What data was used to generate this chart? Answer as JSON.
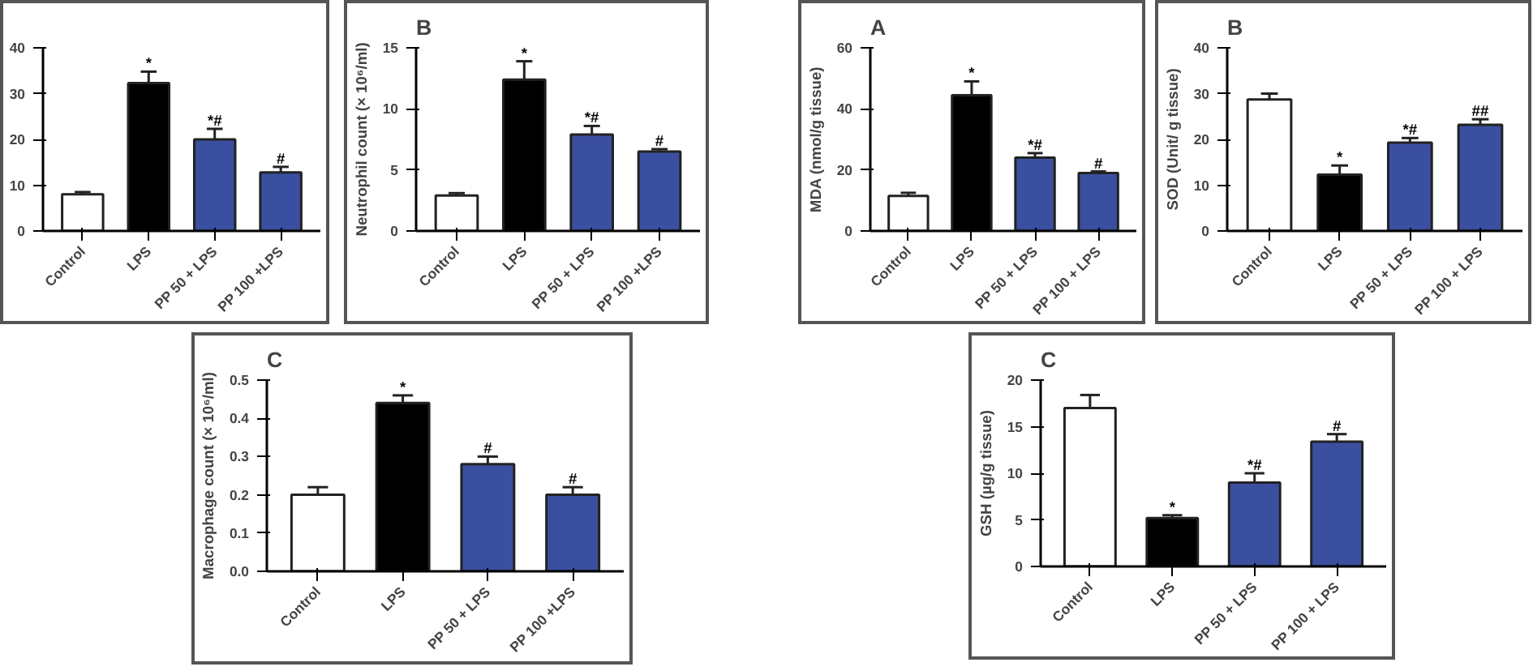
{
  "chart_data": [
    {
      "type": "bar",
      "categories": [
        "Control",
        "LPS",
        "PP 50 + LPS",
        "PP 100 +LPS"
      ],
      "values": [
        8,
        32.3,
        20,
        12.8
      ],
      "colors": [
        "#ffffff",
        "#000000",
        "#3b4fa0",
        "#3b4fa0"
      ],
      "errors": [
        [
          8,
          8.5
        ],
        [
          32.3,
          34.8
        ],
        [
          20,
          22.3
        ],
        [
          12.8,
          14
        ]
      ],
      "ylim": [
        0,
        40
      ],
      "yticks": [
        0,
        10,
        20,
        30,
        40
      ],
      "annotations": [
        {
          "text": "*",
          "x": "LPS",
          "y": 34.8
        },
        {
          "text": "*#",
          "x": "PP 50 + LPS",
          "y": 22.3
        },
        {
          "text": "#",
          "x": "PP 100 +LPS",
          "y": 14
        }
      ]
    },
    {
      "type": "bar",
      "title": "B",
      "ylabel": "Neutrophil count (× 10⁶/ml)",
      "categories": [
        "Control",
        "LPS",
        "PP 50 + LPS",
        "PP 100 +LPS"
      ],
      "values": [
        2.9,
        12.4,
        7.9,
        6.5
      ],
      "colors": [
        "#ffffff",
        "#000000",
        "#3b4fa0",
        "#3b4fa0"
      ],
      "errors": [
        [
          2.9,
          3.1
        ],
        [
          12.4,
          13.9
        ],
        [
          7.9,
          8.6
        ],
        [
          6.5,
          6.7
        ]
      ],
      "ylim": [
        0,
        15
      ],
      "yticks": [
        0,
        5,
        10,
        15
      ],
      "annotations": [
        {
          "text": "*",
          "x": "LPS",
          "y": 13.9
        },
        {
          "text": "*#",
          "x": "PP 50 + LPS",
          "y": 8.6
        },
        {
          "text": "#",
          "x": "PP 100 +LPS",
          "y": 6.7
        }
      ]
    },
    {
      "type": "bar",
      "title": "A",
      "ylabel": "MDA (nmol/g tissue)",
      "categories": [
        "Control",
        "LPS",
        "PP 50 + LPS",
        "PP 100 + LPS"
      ],
      "values": [
        11.5,
        44.5,
        24,
        19
      ],
      "colors": [
        "#ffffff",
        "#000000",
        "#3b4fa0",
        "#3b4fa0"
      ],
      "errors": [
        [
          11.5,
          12.5
        ],
        [
          44.5,
          49
        ],
        [
          24,
          25.5
        ],
        [
          19,
          19.5
        ]
      ],
      "ylim": [
        0,
        60
      ],
      "yticks": [
        0,
        20,
        40,
        60
      ],
      "annotations": [
        {
          "text": "*",
          "x": "LPS",
          "y": 49
        },
        {
          "text": "*#",
          "x": "PP 50 + LPS",
          "y": 25.5
        },
        {
          "text": "#",
          "x": "PP 100 + LPS",
          "y": 19.5
        }
      ]
    },
    {
      "type": "bar",
      "title": "B",
      "ylabel": "SOD (Unit/ g tissue)",
      "categories": [
        "Control",
        "LPS",
        "PP 50 + LPS",
        "PP 100 + LPS"
      ],
      "values": [
        28.7,
        12.3,
        19.3,
        23.2
      ],
      "colors": [
        "#ffffff",
        "#000000",
        "#3b4fa0",
        "#3b4fa0"
      ],
      "errors": [
        [
          28.7,
          30
        ],
        [
          12.3,
          14.3
        ],
        [
          19.3,
          20.3
        ],
        [
          23.2,
          24.4
        ]
      ],
      "ylim": [
        0,
        40
      ],
      "yticks": [
        0,
        10,
        20,
        30,
        40
      ],
      "annotations": [
        {
          "text": "*",
          "x": "LPS",
          "y": 14.3
        },
        {
          "text": "*#",
          "x": "PP 50 + LPS",
          "y": 20.3
        },
        {
          "text": "##",
          "x": "PP 100 + LPS",
          "y": 24.4
        }
      ]
    },
    {
      "type": "bar",
      "title": "C",
      "ylabel": "Macrophage count (× 10⁶/ml)",
      "categories": [
        "Control",
        "LPS",
        "PP 50 + LPS",
        "PP 100 +LPS"
      ],
      "values": [
        0.2,
        0.44,
        0.28,
        0.2
      ],
      "colors": [
        "#ffffff",
        "#000000",
        "#3b4fa0",
        "#3b4fa0"
      ],
      "errors": [
        [
          0.2,
          0.22
        ],
        [
          0.44,
          0.46
        ],
        [
          0.28,
          0.3
        ],
        [
          0.2,
          0.22
        ]
      ],
      "ylim": [
        0,
        0.5
      ],
      "yticks": [
        {
          "value": 0,
          "label": "0.0"
        },
        0.1,
        0.2,
        0.3,
        0.4,
        0.5
      ],
      "annotations": [
        {
          "text": "*",
          "x": "LPS",
          "y": 0.46
        },
        {
          "text": "#",
          "x": "PP 50 + LPS",
          "y": 0.3
        },
        {
          "text": "#",
          "x": "PP 100 +LPS",
          "y": 0.22
        }
      ]
    },
    {
      "type": "bar",
      "title": "C",
      "ylabel": "GSH (µg/g tissue)",
      "categories": [
        "Control",
        "LPS",
        "PP 50 + LPS",
        "PP 100 + LPS"
      ],
      "values": [
        17,
        5.2,
        9,
        13.4
      ],
      "colors": [
        "#ffffff",
        "#000000",
        "#3b4fa0",
        "#3b4fa0"
      ],
      "errors": [
        [
          17,
          18.4
        ],
        [
          5.2,
          5.5
        ],
        [
          9,
          10
        ],
        [
          13.4,
          14.2
        ]
      ],
      "ylim": [
        0,
        20
      ],
      "yticks": [
        0,
        5,
        10,
        15,
        20
      ],
      "annotations": [
        {
          "text": "*",
          "x": "LPS",
          "y": 5.5
        },
        {
          "text": "*#",
          "x": "PP 50 + LPS",
          "y": 10
        },
        {
          "text": "#",
          "x": "PP 100 + LPS",
          "y": 14.2
        }
      ]
    }
  ]
}
